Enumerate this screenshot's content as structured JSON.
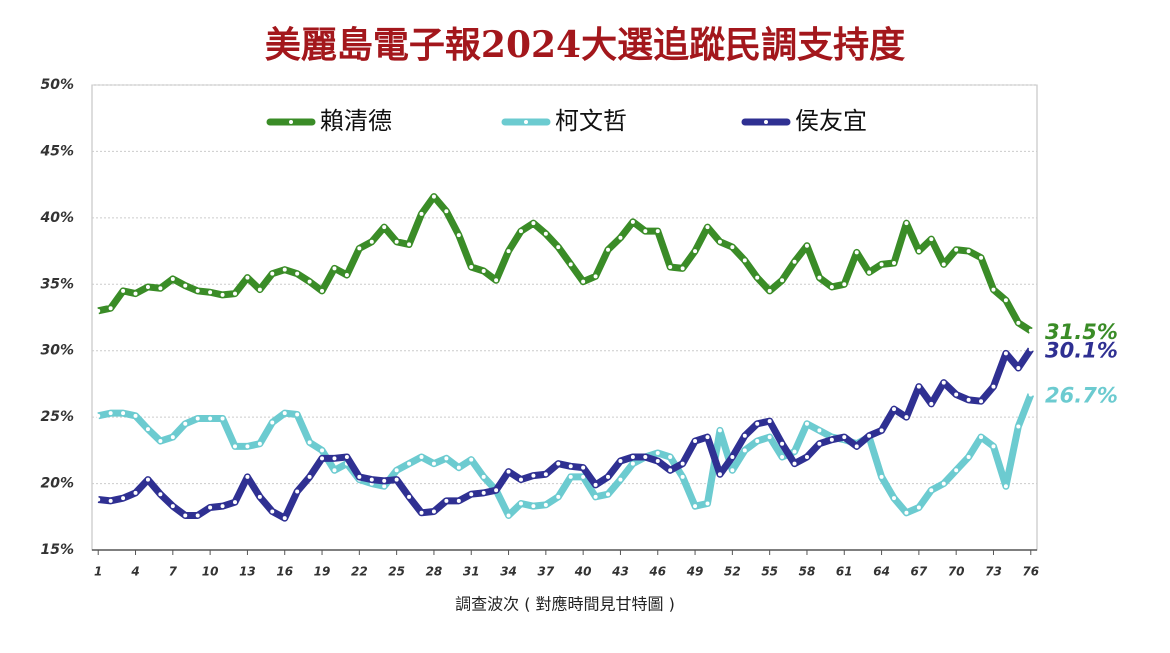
{
  "chart_data": {
    "type": "line",
    "title": "美麗島電子報2024大選追蹤民調支持度",
    "x_label": "調查波次 ( 對應時間見甘特圖 )",
    "x": [
      1,
      2,
      3,
      4,
      5,
      6,
      7,
      8,
      9,
      10,
      11,
      12,
      13,
      14,
      15,
      16,
      17,
      18,
      19,
      20,
      21,
      22,
      23,
      24,
      25,
      26,
      27,
      28,
      29,
      30,
      31,
      32,
      33,
      34,
      35,
      36,
      37,
      38,
      39,
      40,
      41,
      42,
      43,
      44,
      45,
      46,
      47,
      48,
      49,
      50,
      51,
      52,
      53,
      54,
      55,
      56,
      57,
      58,
      59,
      60,
      61,
      62,
      63,
      64,
      65,
      66,
      67,
      68,
      69,
      70,
      71,
      72,
      73,
      74,
      75,
      76
    ],
    "xlim": [
      0.5,
      76.5
    ],
    "xticks": [
      1,
      4,
      7,
      10,
      13,
      16,
      19,
      22,
      25,
      28,
      31,
      34,
      37,
      40,
      43,
      46,
      49,
      52,
      55,
      58,
      61,
      64,
      67,
      70,
      73,
      76
    ],
    "ylim": [
      15,
      50
    ],
    "yticks": [
      {
        "value": 15,
        "label": "15%"
      },
      {
        "value": 20,
        "label": "20%"
      },
      {
        "value": 25,
        "label": "25%"
      },
      {
        "value": 30,
        "label": "30%"
      },
      {
        "value": 35,
        "label": "35%"
      },
      {
        "value": 40,
        "label": "40%"
      },
      {
        "value": 45,
        "label": "45%"
      },
      {
        "value": 50,
        "label": "50%"
      }
    ],
    "grid": true,
    "legend": "top",
    "series": [
      {
        "name": "賴清德",
        "color": "#3a8c27",
        "last_label": "31.5%",
        "values": [
          33,
          33.2,
          34.5,
          34.3,
          34.8,
          34.7,
          35.4,
          34.9,
          34.5,
          34.4,
          34.2,
          34.3,
          35.5,
          34.6,
          35.8,
          36.1,
          35.8,
          35.2,
          34.5,
          36.2,
          35.7,
          37.7,
          38.2,
          39.3,
          38.2,
          38.0,
          40.3,
          41.6,
          40.5,
          38.7,
          36.3,
          36.0,
          35.3,
          37.5,
          39.0,
          39.6,
          38.8,
          37.8,
          36.5,
          35.2,
          35.6,
          37.6,
          38.5,
          39.7,
          39.0,
          39.0,
          36.3,
          36.2,
          37.5,
          39.3,
          38.2,
          37.8,
          36.8,
          35.5,
          34.5,
          35.3,
          36.7,
          37.9,
          35.5,
          34.8,
          35.0,
          37.4,
          35.9,
          36.5,
          36.6,
          39.6,
          37.5,
          38.4,
          36.5,
          37.6,
          37.5,
          37.0,
          34.6,
          33.8,
          32.1,
          31.5
        ]
      },
      {
        "name": "柯文哲",
        "color": "#6ccbd0",
        "last_label": "26.7%",
        "values": [
          25.1,
          25.3,
          25.3,
          25.1,
          24.1,
          23.2,
          23.5,
          24.5,
          24.9,
          24.9,
          24.9,
          22.8,
          22.8,
          23.0,
          24.6,
          25.3,
          25.2,
          23.1,
          22.5,
          21.0,
          21.5,
          20.3,
          20.0,
          19.8,
          21.0,
          21.5,
          22.0,
          21.5,
          21.9,
          21.2,
          21.8,
          20.5,
          19.5,
          17.6,
          18.5,
          18.3,
          18.4,
          19.0,
          20.5,
          20.5,
          19.0,
          19.2,
          20.3,
          21.5,
          22.0,
          22.3,
          22.0,
          20.5,
          18.3,
          18.5,
          24.0,
          21.0,
          22.5,
          23.2,
          23.5,
          22.0,
          22.4,
          24.5,
          24.0,
          23.5,
          23.3,
          23.0,
          23.5,
          20.5,
          18.9,
          17.8,
          18.2,
          19.5,
          20.0,
          21.0,
          22.0,
          23.5,
          22.8,
          19.8,
          24.3,
          26.7
        ]
      },
      {
        "name": "侯友宜",
        "color": "#2f3092",
        "last_label": "30.1%",
        "values": [
          18.8,
          18.7,
          18.9,
          19.3,
          20.3,
          19.2,
          18.3,
          17.6,
          17.6,
          18.2,
          18.3,
          18.6,
          20.5,
          19.0,
          17.9,
          17.4,
          19.4,
          20.5,
          21.9,
          21.9,
          22.0,
          20.5,
          20.3,
          20.2,
          20.3,
          19.0,
          17.8,
          17.9,
          18.7,
          18.7,
          19.2,
          19.3,
          19.5,
          20.9,
          20.3,
          20.6,
          20.7,
          21.5,
          21.3,
          21.2,
          19.9,
          20.5,
          21.7,
          22.0,
          22.0,
          21.7,
          21.0,
          21.5,
          23.2,
          23.5,
          20.7,
          22.0,
          23.6,
          24.5,
          24.7,
          23.0,
          21.5,
          22.0,
          23.0,
          23.3,
          23.5,
          22.8,
          23.6,
          24.0,
          25.6,
          25.0,
          27.3,
          26.0,
          27.6,
          26.7,
          26.3,
          26.2,
          27.3,
          29.8,
          28.7,
          30.1
        ]
      }
    ]
  }
}
